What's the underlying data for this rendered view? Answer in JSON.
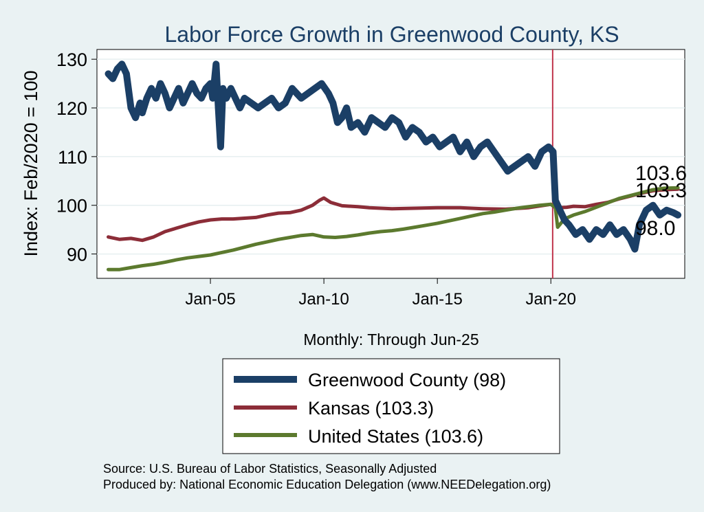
{
  "chart_data": {
    "type": "line",
    "title": "Labor Force Growth in Greenwood  County, KS",
    "ylabel": "Index: Feb/2020 = 100",
    "xlabel": "Monthly: Through Jun-25",
    "ylim": [
      85,
      132
    ],
    "xlim": [
      2000.0,
      2025.9
    ],
    "yticks": [
      90,
      100,
      110,
      120,
      130
    ],
    "xticks": [
      {
        "label": "Jan-05",
        "value": 2005
      },
      {
        "label": "Jan-10",
        "value": 2010
      },
      {
        "label": "Jan-15",
        "value": 2015
      },
      {
        "label": "Jan-20",
        "value": 2020
      }
    ],
    "reference_line": {
      "x": 2020.08,
      "color": "#c0344b"
    },
    "end_labels": [
      "103.6",
      "103.3",
      "98.0"
    ],
    "series": [
      {
        "name": "Greenwood  County",
        "legend": "Greenwood  County (98)",
        "color": "#1b3f66",
        "points": [
          [
            2000.5,
            127
          ],
          [
            2000.7,
            126
          ],
          [
            2000.9,
            128
          ],
          [
            2001.1,
            129
          ],
          [
            2001.3,
            127
          ],
          [
            2001.5,
            120
          ],
          [
            2001.7,
            118
          ],
          [
            2001.9,
            121
          ],
          [
            2002.0,
            119
          ],
          [
            2002.2,
            122
          ],
          [
            2002.4,
            124
          ],
          [
            2002.6,
            122
          ],
          [
            2002.8,
            125
          ],
          [
            2003.0,
            123
          ],
          [
            2003.2,
            120
          ],
          [
            2003.4,
            122
          ],
          [
            2003.6,
            124
          ],
          [
            2003.8,
            121
          ],
          [
            2004.0,
            123
          ],
          [
            2004.2,
            125
          ],
          [
            2004.4,
            123
          ],
          [
            2004.6,
            122
          ],
          [
            2004.8,
            124
          ],
          [
            2005.0,
            125
          ],
          [
            2005.1,
            122
          ],
          [
            2005.25,
            129
          ],
          [
            2005.35,
            120
          ],
          [
            2005.45,
            112
          ],
          [
            2005.55,
            124
          ],
          [
            2005.7,
            122
          ],
          [
            2005.9,
            124
          ],
          [
            2006.1,
            122
          ],
          [
            2006.3,
            120
          ],
          [
            2006.5,
            122
          ],
          [
            2006.8,
            121
          ],
          [
            2007.1,
            120
          ],
          [
            2007.4,
            121
          ],
          [
            2007.7,
            122
          ],
          [
            2008.0,
            120
          ],
          [
            2008.3,
            121
          ],
          [
            2008.6,
            124
          ],
          [
            2009.0,
            122
          ],
          [
            2009.3,
            123
          ],
          [
            2009.6,
            124
          ],
          [
            2009.9,
            125
          ],
          [
            2010.2,
            123
          ],
          [
            2010.4,
            121
          ],
          [
            2010.6,
            117
          ],
          [
            2010.8,
            118
          ],
          [
            2011.0,
            120
          ],
          [
            2011.2,
            116
          ],
          [
            2011.5,
            117
          ],
          [
            2011.8,
            115
          ],
          [
            2012.1,
            118
          ],
          [
            2012.4,
            117
          ],
          [
            2012.7,
            116
          ],
          [
            2013.0,
            118
          ],
          [
            2013.3,
            117
          ],
          [
            2013.6,
            114
          ],
          [
            2013.9,
            116
          ],
          [
            2014.2,
            115
          ],
          [
            2014.5,
            113
          ],
          [
            2014.8,
            114
          ],
          [
            2015.1,
            112
          ],
          [
            2015.4,
            113
          ],
          [
            2015.7,
            114
          ],
          [
            2016.0,
            111
          ],
          [
            2016.3,
            113
          ],
          [
            2016.6,
            110
          ],
          [
            2016.9,
            112
          ],
          [
            2017.2,
            113
          ],
          [
            2017.5,
            111
          ],
          [
            2017.8,
            109
          ],
          [
            2018.1,
            107
          ],
          [
            2018.4,
            108
          ],
          [
            2018.7,
            109
          ],
          [
            2019.0,
            110
          ],
          [
            2019.3,
            108
          ],
          [
            2019.6,
            111
          ],
          [
            2019.9,
            112
          ],
          [
            2020.1,
            111
          ],
          [
            2020.2,
            101
          ],
          [
            2020.4,
            99
          ],
          [
            2020.6,
            97
          ],
          [
            2020.8,
            96
          ],
          [
            2021.1,
            94
          ],
          [
            2021.4,
            95
          ],
          [
            2021.7,
            93
          ],
          [
            2022.0,
            95
          ],
          [
            2022.3,
            94
          ],
          [
            2022.6,
            96
          ],
          [
            2022.9,
            94
          ],
          [
            2023.2,
            95
          ],
          [
            2023.5,
            93
          ],
          [
            2023.7,
            91
          ],
          [
            2023.9,
            96
          ],
          [
            2024.2,
            99
          ],
          [
            2024.5,
            100
          ],
          [
            2024.8,
            98
          ],
          [
            2025.1,
            99
          ],
          [
            2025.4,
            98.5
          ],
          [
            2025.6,
            98.0
          ]
        ]
      },
      {
        "name": "Kansas",
        "legend": "Kansas (103.3)",
        "color": "#8c2d38",
        "points": [
          [
            2000.5,
            93.5
          ],
          [
            2001.0,
            93
          ],
          [
            2001.5,
            93.2
          ],
          [
            2002.0,
            92.8
          ],
          [
            2002.5,
            93.5
          ],
          [
            2003.0,
            94.6
          ],
          [
            2003.5,
            95.3
          ],
          [
            2004.0,
            96
          ],
          [
            2004.5,
            96.6
          ],
          [
            2005.0,
            97
          ],
          [
            2005.5,
            97.2
          ],
          [
            2006.0,
            97.2
          ],
          [
            2007.0,
            97.5
          ],
          [
            2007.5,
            98
          ],
          [
            2008.0,
            98.4
          ],
          [
            2008.5,
            98.5
          ],
          [
            2009.0,
            99
          ],
          [
            2009.5,
            100
          ],
          [
            2009.8,
            101
          ],
          [
            2010.0,
            101.5
          ],
          [
            2010.3,
            100.6
          ],
          [
            2010.8,
            99.9
          ],
          [
            2011.5,
            99.7
          ],
          [
            2012.0,
            99.5
          ],
          [
            2013.0,
            99.3
          ],
          [
            2014.0,
            99.4
          ],
          [
            2015.0,
            99.5
          ],
          [
            2016.0,
            99.5
          ],
          [
            2017.0,
            99.3
          ],
          [
            2018.0,
            99.2
          ],
          [
            2019.0,
            99.5
          ],
          [
            2020.0,
            100.2
          ],
          [
            2020.3,
            99.5
          ],
          [
            2020.7,
            99.6
          ],
          [
            2021.0,
            99.8
          ],
          [
            2021.5,
            99.7
          ],
          [
            2022.0,
            100.2
          ],
          [
            2022.5,
            100.6
          ],
          [
            2023.0,
            101.3
          ],
          [
            2023.5,
            101.9
          ],
          [
            2024.0,
            102.5
          ],
          [
            2024.5,
            103.0
          ],
          [
            2025.0,
            103.2
          ],
          [
            2025.6,
            103.3
          ]
        ]
      },
      {
        "name": "United States",
        "legend": "United States (103.6)",
        "color": "#5c7a2e",
        "points": [
          [
            2000.5,
            86.8
          ],
          [
            2001.0,
            86.8
          ],
          [
            2001.5,
            87.2
          ],
          [
            2002.0,
            87.6
          ],
          [
            2002.5,
            87.9
          ],
          [
            2003.0,
            88.3
          ],
          [
            2003.5,
            88.8
          ],
          [
            2004.0,
            89.2
          ],
          [
            2004.5,
            89.5
          ],
          [
            2005.0,
            89.8
          ],
          [
            2005.5,
            90.3
          ],
          [
            2006.0,
            90.8
          ],
          [
            2006.5,
            91.4
          ],
          [
            2007.0,
            92.0
          ],
          [
            2007.5,
            92.5
          ],
          [
            2008.0,
            93.0
          ],
          [
            2008.5,
            93.4
          ],
          [
            2009.0,
            93.8
          ],
          [
            2009.5,
            94.0
          ],
          [
            2010.0,
            93.5
          ],
          [
            2010.5,
            93.4
          ],
          [
            2011.0,
            93.6
          ],
          [
            2011.5,
            93.9
          ],
          [
            2012.0,
            94.3
          ],
          [
            2012.5,
            94.6
          ],
          [
            2013.0,
            94.8
          ],
          [
            2013.5,
            95.1
          ],
          [
            2014.0,
            95.5
          ],
          [
            2014.5,
            95.9
          ],
          [
            2015.0,
            96.3
          ],
          [
            2015.5,
            96.8
          ],
          [
            2016.0,
            97.3
          ],
          [
            2016.5,
            97.8
          ],
          [
            2017.0,
            98.3
          ],
          [
            2017.5,
            98.6
          ],
          [
            2018.0,
            99.0
          ],
          [
            2018.5,
            99.4
          ],
          [
            2019.0,
            99.7
          ],
          [
            2019.5,
            100.0
          ],
          [
            2020.0,
            100.2
          ],
          [
            2020.2,
            99.5
          ],
          [
            2020.3,
            95.5
          ],
          [
            2020.6,
            97.2
          ],
          [
            2021.0,
            98.0
          ],
          [
            2021.5,
            98.7
          ],
          [
            2022.0,
            99.6
          ],
          [
            2022.5,
            100.5
          ],
          [
            2023.0,
            101.4
          ],
          [
            2023.5,
            102.0
          ],
          [
            2024.0,
            102.6
          ],
          [
            2024.5,
            103.2
          ],
          [
            2025.0,
            103.5
          ],
          [
            2025.6,
            103.6
          ]
        ]
      }
    ]
  },
  "footer": {
    "source": "Source: U.S. Bureau of Labor Statistics, Seasonally Adjusted",
    "produced_by": "Produced by: National Economic Education Delegation (www.NEEDelegation.org)"
  }
}
